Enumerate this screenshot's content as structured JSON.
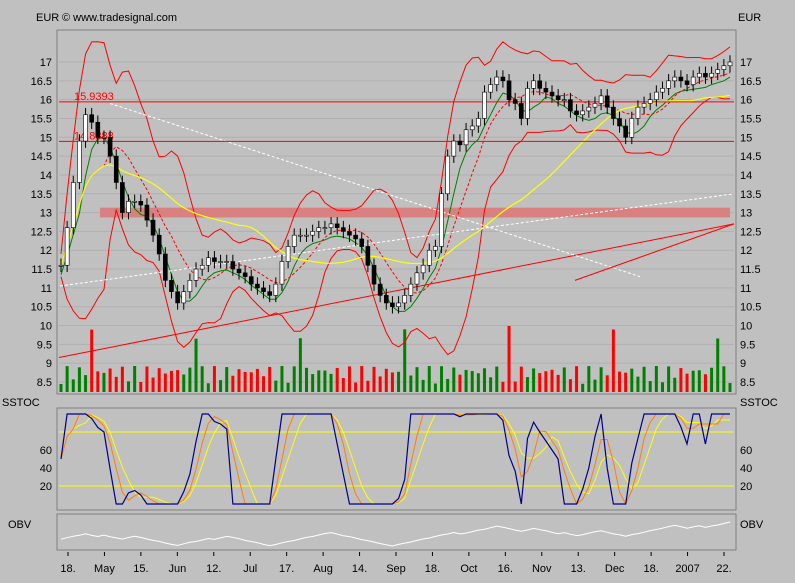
{
  "header": {
    "currency_left": "EUR",
    "currency_right": "EUR",
    "copyright": "© www.tradesignal.com"
  },
  "chart_data": [
    {
      "type": "line",
      "panel": "price",
      "ylim": [
        8.3,
        17.3
      ],
      "yticks": [
        17,
        16.5,
        16,
        15.5,
        15,
        14.5,
        14,
        13.5,
        13,
        12.5,
        12,
        11.5,
        11,
        10.5,
        10,
        9.5,
        9,
        8.5
      ],
      "ytick_labels": [
        "17",
        "16.5",
        "16",
        "15.5",
        "15",
        "14.5",
        "14",
        "13.5",
        "13",
        "12.5",
        "12",
        "11.5",
        "11",
        "10.5",
        "10",
        "9.5",
        "9",
        "8.5"
      ],
      "grid": true,
      "horizontal_lines": [
        {
          "label": "15.9393",
          "value": 15.94,
          "color": "#ff0000"
        },
        {
          "label": "14.8888",
          "value": 14.89,
          "color": "#ff0000"
        }
      ],
      "band": {
        "from": 12.87,
        "to": 13.13,
        "color": "#d98080"
      },
      "x": [
        0,
        6,
        12,
        18,
        24,
        30,
        36,
        42,
        48,
        54,
        60,
        66,
        72,
        78,
        84,
        90,
        96,
        102,
        108,
        114,
        120,
        126,
        132,
        138,
        144,
        150,
        156,
        162,
        168,
        174,
        180,
        186,
        192,
        198,
        204,
        210,
        216,
        222,
        228,
        234,
        240,
        246,
        252,
        258,
        264,
        270,
        276,
        282,
        288,
        294,
        300,
        306,
        312,
        318,
        324,
        330,
        336,
        342,
        348,
        354,
        360,
        366,
        372,
        378,
        384,
        390,
        396,
        402,
        408,
        414,
        420,
        426,
        432,
        438,
        444,
        450,
        456,
        462,
        468,
        474,
        480,
        486,
        492,
        498,
        504,
        510,
        516,
        522,
        528,
        534,
        540,
        546,
        552,
        558,
        564,
        570,
        576,
        582,
        588,
        594,
        600,
        606,
        612,
        618,
        624,
        630,
        636,
        642,
        648,
        654
      ],
      "series": [
        {
          "role": "close",
          "color": "#000000",
          "values": [
            11.6,
            12.6,
            13.8,
            14.9,
            15.6,
            15.4,
            15.0,
            15.0,
            14.5,
            13.8,
            13.0,
            13.3,
            13.3,
            13.2,
            12.8,
            12.4,
            11.9,
            11.2,
            10.9,
            10.6,
            10.9,
            11.2,
            11.5,
            11.6,
            11.8,
            11.7,
            11.7,
            11.7,
            11.5,
            11.4,
            11.3,
            11.1,
            11.0,
            10.9,
            10.8,
            11.1,
            11.7,
            12.1,
            12.4,
            12.4,
            12.4,
            12.5,
            12.6,
            12.6,
            12.7,
            12.6,
            12.5,
            12.4,
            12.3,
            12.1,
            11.6,
            11.1,
            10.8,
            10.6,
            10.5,
            10.6,
            10.8,
            11.1,
            11.4,
            11.6,
            12.0,
            12.1,
            13.5,
            14.5,
            14.9,
            14.8,
            15.2,
            15.3,
            15.5,
            16.2,
            16.4,
            16.6,
            16.5,
            16.0,
            15.9,
            15.5,
            16.3,
            16.5,
            16.3,
            16.2,
            16.1,
            16.0,
            16.0,
            15.7,
            15.6,
            15.7,
            15.8,
            15.9,
            16.1,
            15.8,
            15.5,
            15.3,
            15.0,
            15.5,
            15.8,
            15.9,
            16.0,
            16.2,
            16.3,
            16.5,
            16.6,
            16.5,
            16.4,
            16.6,
            16.7,
            16.6,
            16.7,
            16.8,
            16.9,
            17.0
          ]
        }
      ]
    },
    {
      "type": "bar",
      "panel": "volume",
      "up_color": "#008000",
      "down_color": "#ff0000"
    },
    {
      "type": "line",
      "panel": "oscillator",
      "title": "SSTOC",
      "ylim": [
        0,
        100
      ],
      "yticks": [
        60,
        40,
        20
      ],
      "ytick_labels": [
        "60",
        "40",
        "20"
      ],
      "horizontal_lines": [
        {
          "value": 80,
          "color": "#ffff00"
        },
        {
          "value": 20,
          "color": "#ffff00"
        }
      ]
    },
    {
      "type": "line",
      "panel": "obv",
      "title": "OBV",
      "color": "#ffffff"
    }
  ],
  "x_axis": {
    "labels": [
      "18.",
      "May",
      "15.",
      "Jun",
      "12.",
      "Jul",
      "17.",
      "Aug",
      "14.",
      "Sep",
      "18.",
      "Oct",
      "16.",
      "Nov",
      "13.",
      "Dec",
      "18.",
      "2007",
      "22."
    ]
  }
}
